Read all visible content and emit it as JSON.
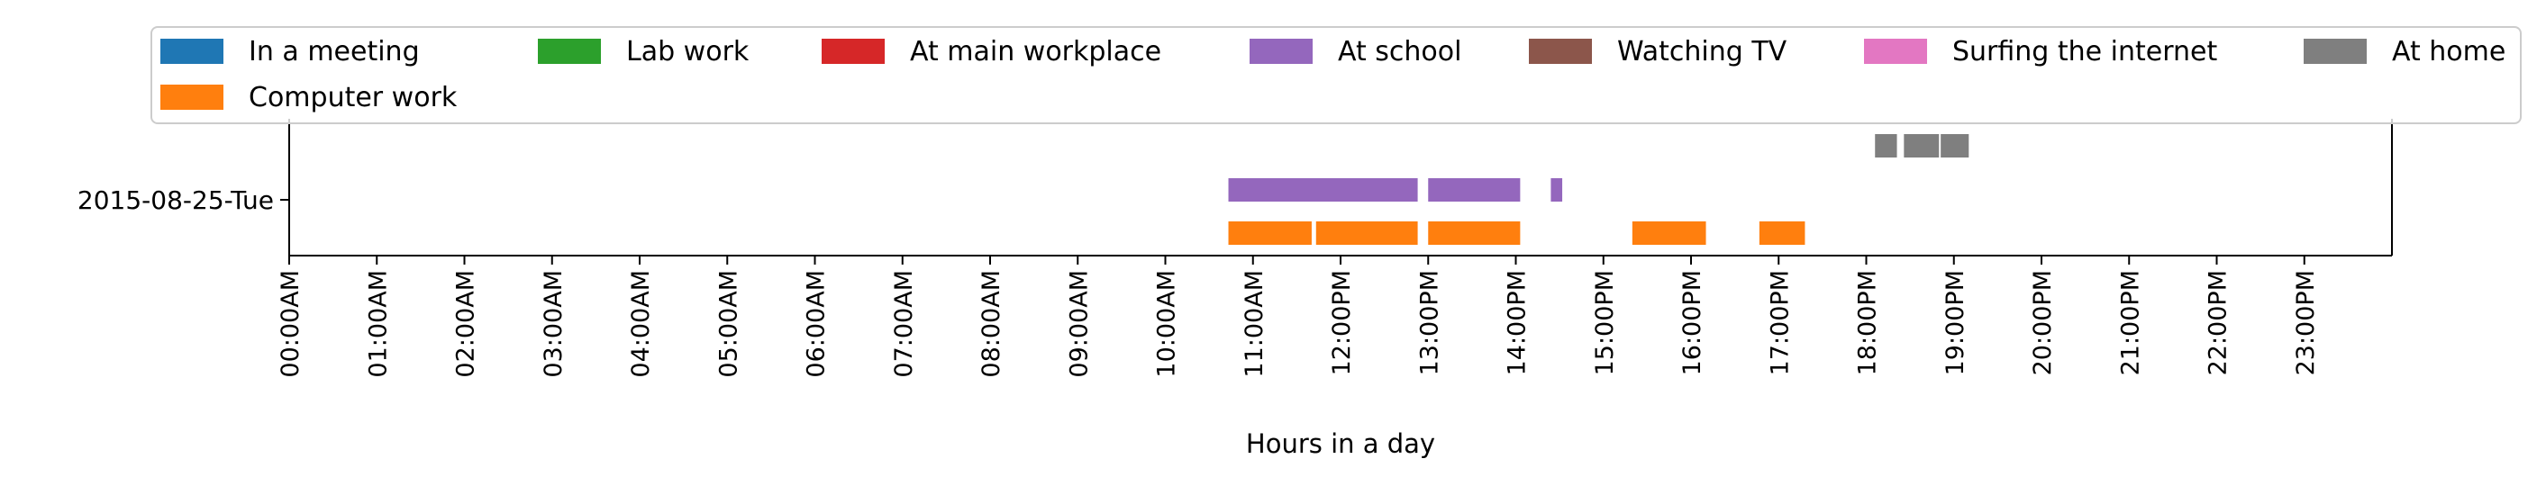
{
  "chart_data": {
    "type": "timeline",
    "title": "",
    "xlabel": "Hours in a day",
    "ylabel": "",
    "xlim": [
      0,
      24
    ],
    "y_categories": [
      "2015-08-25-Tue"
    ],
    "x_ticks": [
      {
        "value": 0,
        "label": "00:00AM"
      },
      {
        "value": 1,
        "label": "01:00AM"
      },
      {
        "value": 2,
        "label": "02:00AM"
      },
      {
        "value": 3,
        "label": "03:00AM"
      },
      {
        "value": 4,
        "label": "04:00AM"
      },
      {
        "value": 5,
        "label": "05:00AM"
      },
      {
        "value": 6,
        "label": "06:00AM"
      },
      {
        "value": 7,
        "label": "07:00AM"
      },
      {
        "value": 8,
        "label": "08:00AM"
      },
      {
        "value": 9,
        "label": "09:00AM"
      },
      {
        "value": 10,
        "label": "10:00AM"
      },
      {
        "value": 11,
        "label": "11:00AM"
      },
      {
        "value": 12,
        "label": "12:00PM"
      },
      {
        "value": 13,
        "label": "13:00PM"
      },
      {
        "value": 14,
        "label": "14:00PM"
      },
      {
        "value": 15,
        "label": "15:00PM"
      },
      {
        "value": 16,
        "label": "16:00PM"
      },
      {
        "value": 17,
        "label": "17:00PM"
      },
      {
        "value": 18,
        "label": "18:00PM"
      },
      {
        "value": 19,
        "label": "19:00PM"
      },
      {
        "value": 20,
        "label": "20:00PM"
      },
      {
        "value": 21,
        "label": "21:00PM"
      },
      {
        "value": 22,
        "label": "22:00PM"
      },
      {
        "value": 23,
        "label": "23:00PM"
      }
    ],
    "legend": {
      "placement": "top",
      "columns": 7,
      "entries": [
        {
          "name": "In a meeting",
          "color": "#1f77b4"
        },
        {
          "name": "Lab work",
          "color": "#2ca02c"
        },
        {
          "name": "At main workplace",
          "color": "#d62728"
        },
        {
          "name": "At school",
          "color": "#9467bd"
        },
        {
          "name": "Watching TV",
          "color": "#8c564b"
        },
        {
          "name": "Surfing the internet",
          "color": "#e377c2"
        },
        {
          "name": "At home",
          "color": "#7f7f7f"
        },
        {
          "name": "Computer work",
          "color": "#ff7f0e"
        }
      ]
    },
    "series": [
      {
        "name": "Computer work",
        "color": "#ff7f0e",
        "lane": 0,
        "intervals": [
          [
            10.72,
            11.67
          ],
          [
            11.72,
            12.88
          ],
          [
            13.0,
            14.05
          ],
          [
            15.33,
            16.17
          ],
          [
            16.78,
            17.3
          ]
        ]
      },
      {
        "name": "At school",
        "color": "#9467bd",
        "lane": 1,
        "intervals": [
          [
            10.72,
            12.88
          ],
          [
            13.0,
            14.05
          ],
          [
            14.4,
            14.53
          ]
        ]
      },
      {
        "name": "At home",
        "color": "#7f7f7f",
        "lane": 2,
        "intervals": [
          [
            18.1,
            18.35
          ],
          [
            18.43,
            18.83
          ],
          [
            18.85,
            19.17
          ]
        ]
      }
    ]
  }
}
